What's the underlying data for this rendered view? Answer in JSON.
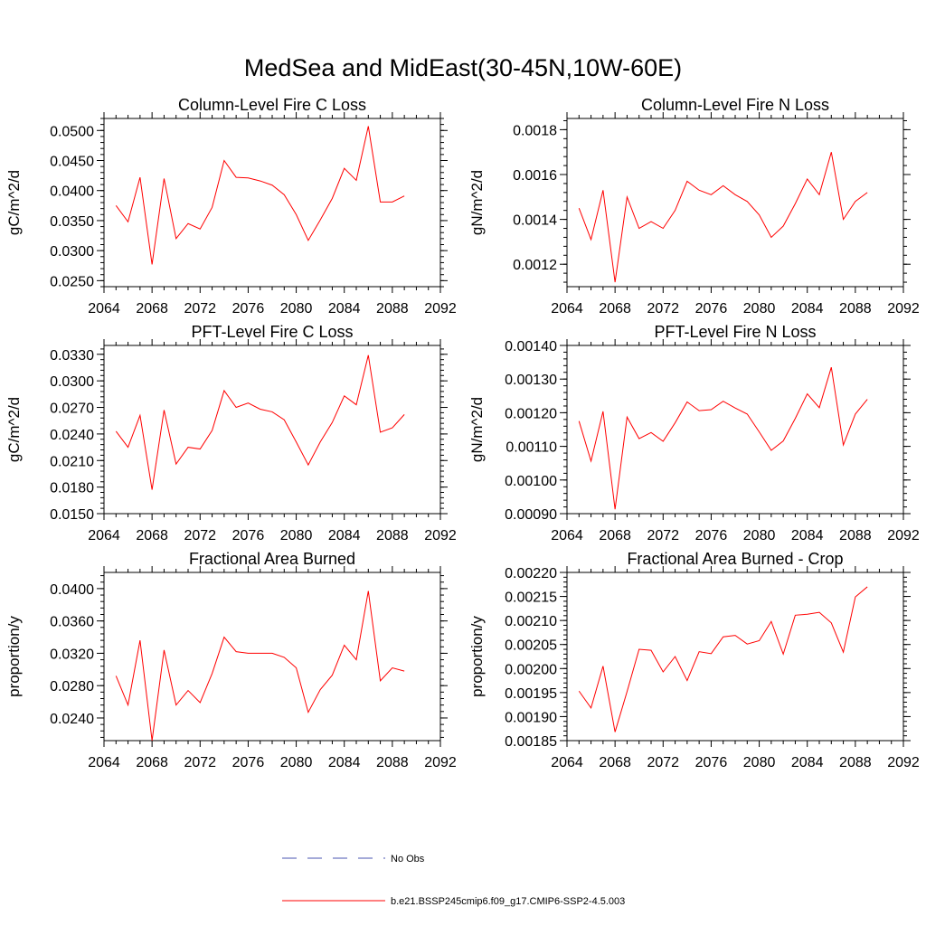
{
  "figure_title": "MedSea and MidEast(30-45N,10W-60E)",
  "chart_data": [
    {
      "type": "line",
      "title": "Column-Level Fire C Loss",
      "ylabel": "gC/m^2/d",
      "xlim": [
        2064,
        2092
      ],
      "ylim": [
        0.024,
        0.052
      ],
      "xticks": [
        2064,
        2068,
        2072,
        2076,
        2080,
        2084,
        2088,
        2092
      ],
      "yticks": [
        0.025,
        0.03,
        0.035,
        0.04,
        0.045,
        0.05
      ],
      "ytick_labels": [
        "0.0250",
        "0.0300",
        "0.0350",
        "0.0400",
        "0.0450",
        "0.0500"
      ],
      "x": [
        2065,
        2066,
        2067,
        2068,
        2069,
        2070,
        2071,
        2072,
        2073,
        2074,
        2075,
        2076,
        2077,
        2078,
        2079,
        2080,
        2081,
        2082,
        2083,
        2084,
        2085,
        2086,
        2087,
        2088,
        2089
      ],
      "series": [
        {
          "values": [
            0.0375,
            0.0348,
            0.0422,
            0.0277,
            0.042,
            0.032,
            0.0345,
            0.0336,
            0.0372,
            0.045,
            0.0422,
            0.0421,
            0.0416,
            0.0409,
            0.0393,
            0.036,
            0.0317,
            0.0351,
            0.0387,
            0.0437,
            0.0417,
            0.0507,
            0.0381,
            0.0381,
            0.0391
          ],
          "color": "#ff0000"
        }
      ]
    },
    {
      "type": "line",
      "title": "Column-Level Fire N Loss",
      "ylabel": "gN/m^2/d",
      "xlim": [
        2064,
        2092
      ],
      "ylim": [
        0.0011,
        0.00185
      ],
      "xticks": [
        2064,
        2068,
        2072,
        2076,
        2080,
        2084,
        2088,
        2092
      ],
      "yticks": [
        0.0012,
        0.0014,
        0.0016,
        0.0018
      ],
      "ytick_labels": [
        "0.0012",
        "0.0014",
        "0.0016",
        "0.0018"
      ],
      "x": [
        2065,
        2066,
        2067,
        2068,
        2069,
        2070,
        2071,
        2072,
        2073,
        2074,
        2075,
        2076,
        2077,
        2078,
        2079,
        2080,
        2081,
        2082,
        2083,
        2084,
        2085,
        2086,
        2087,
        2088,
        2089
      ],
      "series": [
        {
          "values": [
            0.00145,
            0.00131,
            0.00153,
            0.00112,
            0.0015,
            0.00136,
            0.00139,
            0.00136,
            0.00144,
            0.00157,
            0.00153,
            0.00151,
            0.00155,
            0.00151,
            0.00148,
            0.00142,
            0.00132,
            0.00137,
            0.00147,
            0.00158,
            0.00151,
            0.0017,
            0.0014,
            0.00148,
            0.00152
          ],
          "color": "#ff0000"
        }
      ]
    },
    {
      "type": "line",
      "title": "PFT-Level Fire C Loss",
      "ylabel": "gC/m^2/d",
      "xlim": [
        2064,
        2092
      ],
      "ylim": [
        0.015,
        0.034
      ],
      "xticks": [
        2064,
        2068,
        2072,
        2076,
        2080,
        2084,
        2088,
        2092
      ],
      "yticks": [
        0.015,
        0.018,
        0.021,
        0.024,
        0.027,
        0.03,
        0.033
      ],
      "ytick_labels": [
        "0.0150",
        "0.0180",
        "0.0210",
        "0.0240",
        "0.0270",
        "0.0300",
        "0.0330"
      ],
      "x": [
        2065,
        2066,
        2067,
        2068,
        2069,
        2070,
        2071,
        2072,
        2073,
        2074,
        2075,
        2076,
        2077,
        2078,
        2079,
        2080,
        2081,
        2082,
        2083,
        2084,
        2085,
        2086,
        2087,
        2088,
        2089
      ],
      "series": [
        {
          "values": [
            0.0243,
            0.0225,
            0.0261,
            0.0177,
            0.0267,
            0.0206,
            0.0225,
            0.0223,
            0.0244,
            0.0289,
            0.027,
            0.0275,
            0.0268,
            0.0265,
            0.0256,
            0.0231,
            0.0205,
            0.0231,
            0.0253,
            0.0283,
            0.0273,
            0.0329,
            0.0242,
            0.0247,
            0.0262
          ],
          "color": "#ff0000"
        }
      ]
    },
    {
      "type": "line",
      "title": "PFT-Level Fire N Loss",
      "ylabel": "gN/m^2/d",
      "xlim": [
        2064,
        2092
      ],
      "ylim": [
        0.0009,
        0.0014
      ],
      "xticks": [
        2064,
        2068,
        2072,
        2076,
        2080,
        2084,
        2088,
        2092
      ],
      "yticks": [
        0.0009,
        0.001,
        0.0011,
        0.0012,
        0.0013,
        0.0014
      ],
      "ytick_labels": [
        "0.00090",
        "0.00100",
        "0.00110",
        "0.00120",
        "0.00130",
        "0.00140"
      ],
      "x": [
        2065,
        2066,
        2067,
        2068,
        2069,
        2070,
        2071,
        2072,
        2073,
        2074,
        2075,
        2076,
        2077,
        2078,
        2079,
        2080,
        2081,
        2082,
        2083,
        2084,
        2085,
        2086,
        2087,
        2088,
        2089
      ],
      "series": [
        {
          "values": [
            0.001175,
            0.001056,
            0.001204,
            0.000913,
            0.001187,
            0.001123,
            0.001141,
            0.001115,
            0.00117,
            0.001232,
            0.001206,
            0.001209,
            0.001234,
            0.001214,
            0.001196,
            0.001143,
            0.001088,
            0.001116,
            0.001183,
            0.001256,
            0.001215,
            0.001335,
            0.001104,
            0.001196,
            0.00124
          ],
          "color": "#ff0000"
        }
      ]
    },
    {
      "type": "line",
      "title": "Fractional Area Burned",
      "ylabel": "proportion/y",
      "xlim": [
        2064,
        2092
      ],
      "ylim": [
        0.0212,
        0.042
      ],
      "xticks": [
        2064,
        2068,
        2072,
        2076,
        2080,
        2084,
        2088,
        2092
      ],
      "yticks": [
        0.024,
        0.028,
        0.032,
        0.036,
        0.04
      ],
      "ytick_labels": [
        "0.0240",
        "0.0280",
        "0.0320",
        "0.0360",
        "0.0400"
      ],
      "x": [
        2065,
        2066,
        2067,
        2068,
        2069,
        2070,
        2071,
        2072,
        2073,
        2074,
        2075,
        2076,
        2077,
        2078,
        2079,
        2080,
        2081,
        2082,
        2083,
        2084,
        2085,
        2086,
        2087,
        2088,
        2089
      ],
      "series": [
        {
          "values": [
            0.0292,
            0.0256,
            0.0336,
            0.0212,
            0.0324,
            0.0256,
            0.0274,
            0.0259,
            0.0295,
            0.034,
            0.0322,
            0.032,
            0.032,
            0.032,
            0.0315,
            0.0302,
            0.0247,
            0.0275,
            0.0293,
            0.033,
            0.0312,
            0.0397,
            0.0286,
            0.0302,
            0.0298
          ],
          "color": "#ff0000"
        }
      ]
    },
    {
      "type": "line",
      "title": "Fractional Area Burned - Crop",
      "ylabel": "proportion/y",
      "xlim": [
        2064,
        2092
      ],
      "ylim": [
        0.00185,
        0.0022
      ],
      "xticks": [
        2064,
        2068,
        2072,
        2076,
        2080,
        2084,
        2088,
        2092
      ],
      "yticks": [
        0.00185,
        0.0019,
        0.00195,
        0.002,
        0.00205,
        0.0021,
        0.00215,
        0.0022
      ],
      "ytick_labels": [
        "0.00185",
        "0.00190",
        "0.00195",
        "0.00200",
        "0.00205",
        "0.00210",
        "0.00215",
        "0.00220"
      ],
      "x": [
        2065,
        2066,
        2067,
        2068,
        2069,
        2070,
        2071,
        2072,
        2073,
        2074,
        2075,
        2076,
        2077,
        2078,
        2079,
        2080,
        2081,
        2082,
        2083,
        2084,
        2085,
        2086,
        2087,
        2088,
        2089
      ],
      "series": [
        {
          "values": [
            0.001953,
            0.001918,
            0.002005,
            0.001868,
            0.001952,
            0.00204,
            0.002038,
            0.001993,
            0.002025,
            0.001975,
            0.002035,
            0.002031,
            0.002066,
            0.002069,
            0.002051,
            0.002058,
            0.002098,
            0.00203,
            0.002111,
            0.002113,
            0.002117,
            0.002095,
            0.002034,
            0.002149,
            0.00217
          ],
          "color": "#ff0000"
        }
      ]
    }
  ],
  "legend": [
    {
      "label": "No Obs",
      "color": "#4a55b0",
      "dash": true
    },
    {
      "label": "b.e21.BSSP245cmip6.f09_g17.CMIP6-SSP2-4.5.003",
      "color": "#ff0000",
      "dash": false
    }
  ]
}
